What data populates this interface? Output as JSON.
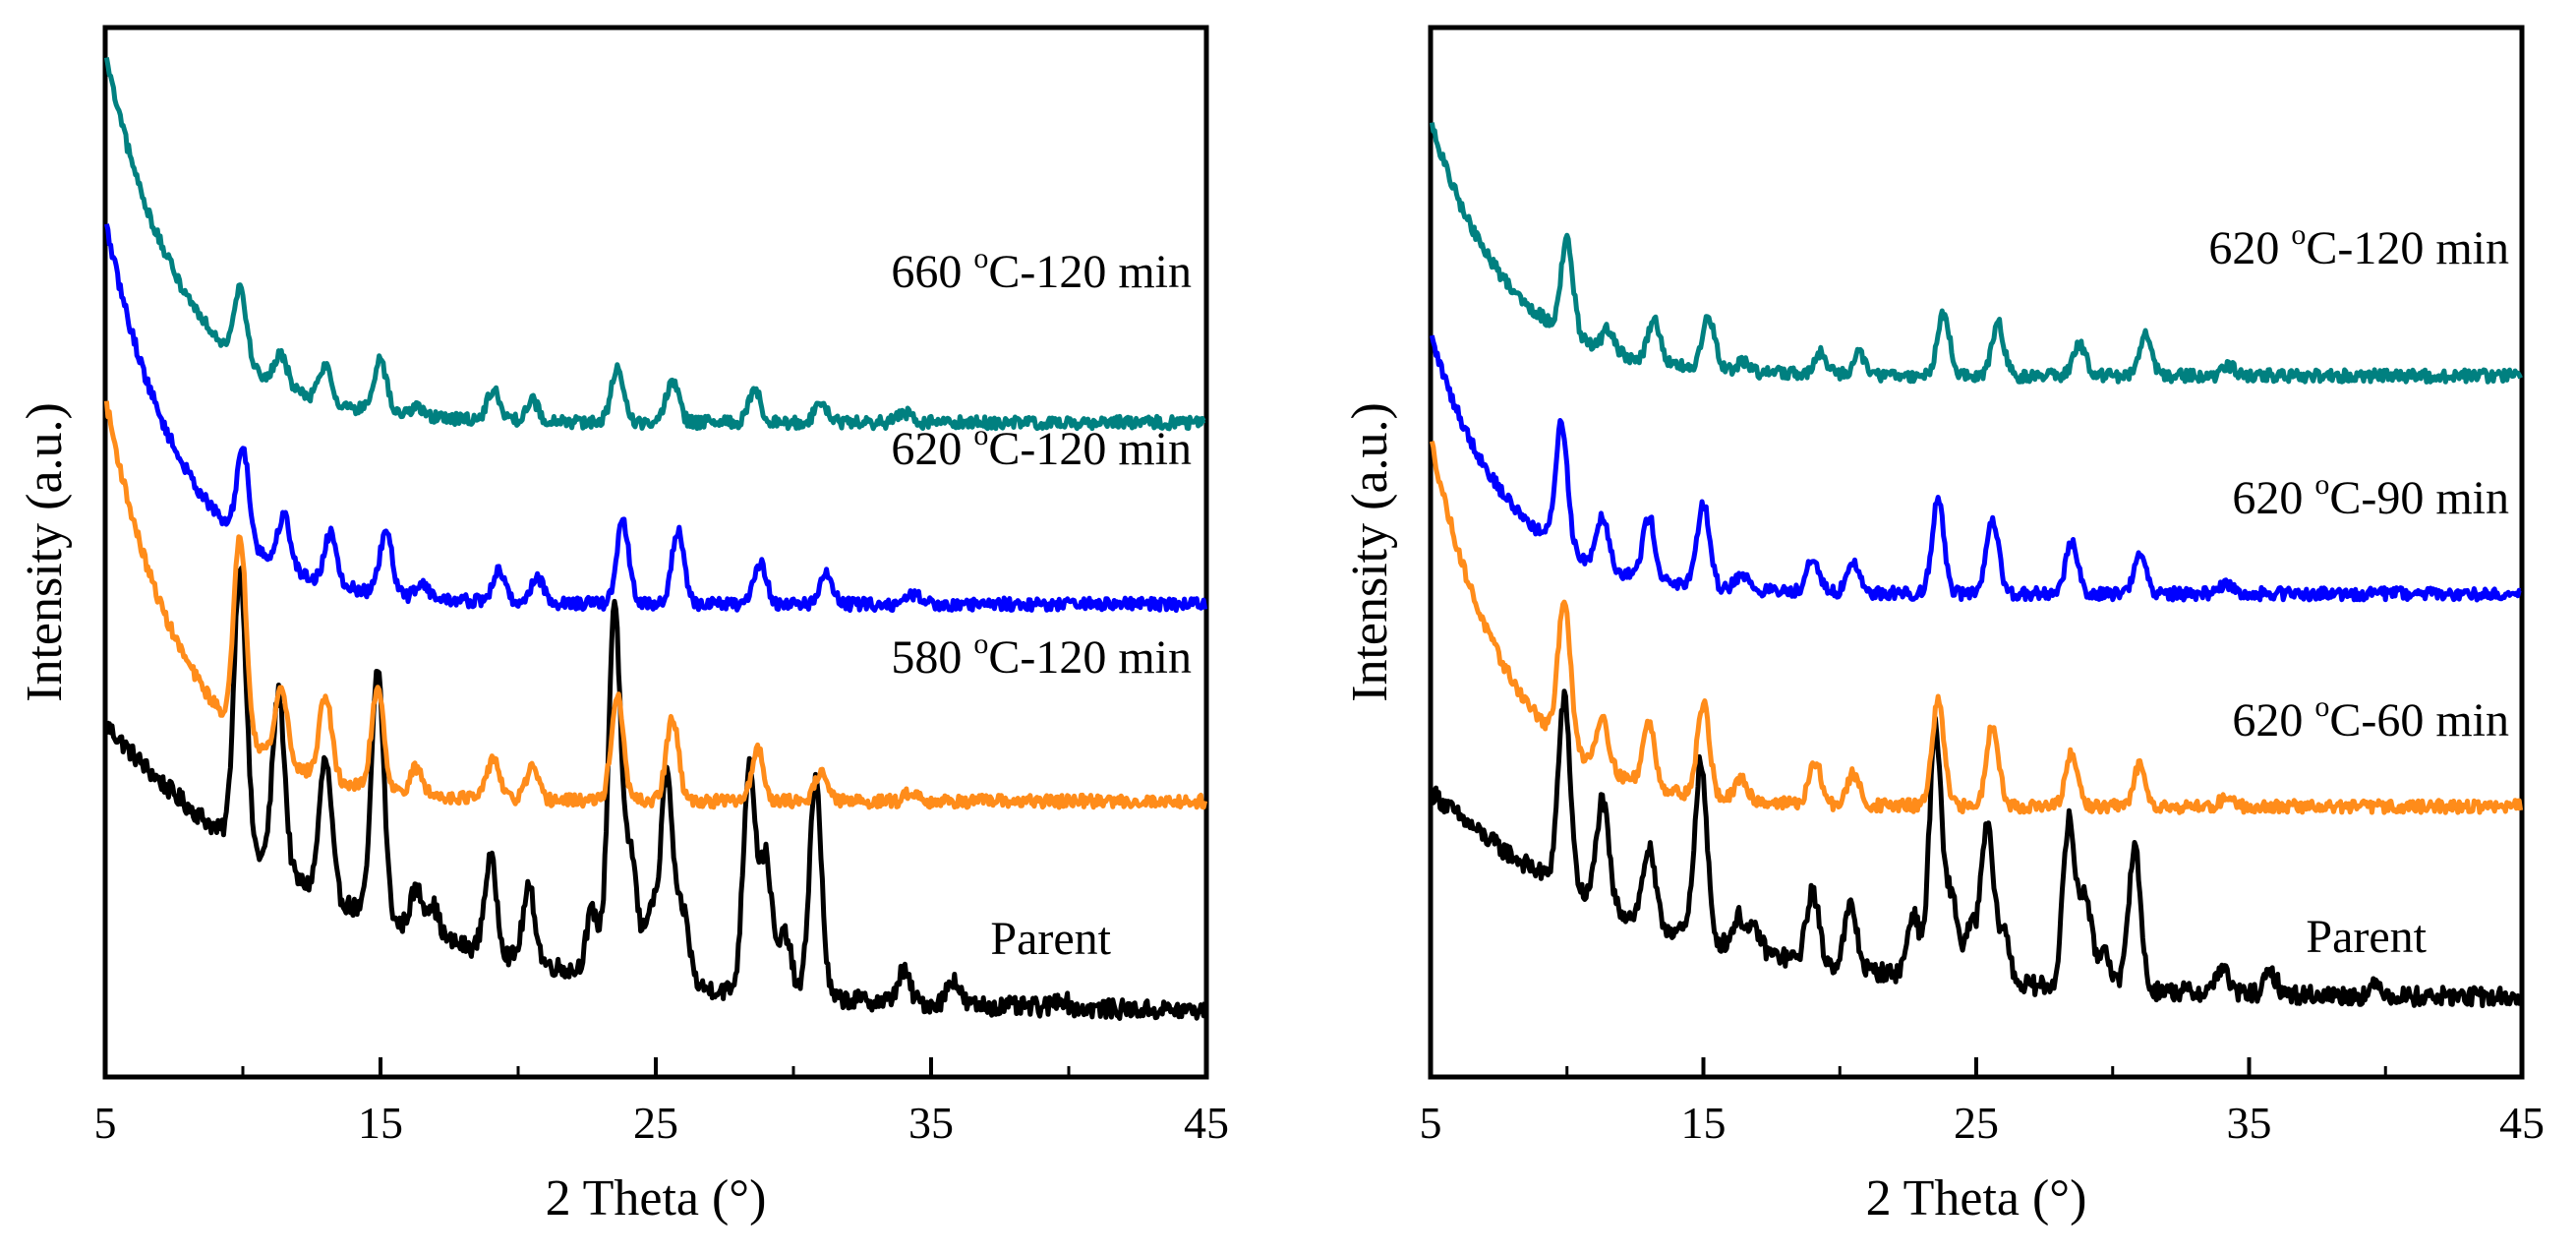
{
  "chart_data": [
    {
      "type": "line",
      "panel": "left",
      "xlabel": "2 Theta (°)",
      "ylabel": "Intensity (a.u.)",
      "xlim": [
        5,
        45
      ],
      "ylim": [
        0,
        100
      ],
      "xticks": [
        "5",
        "15",
        "25",
        "35",
        "45"
      ],
      "grid": false,
      "series": [
        {
          "name": "Parent",
          "label": "Parent",
          "color": "#000000",
          "start": 33.5,
          "end": 5.5,
          "decay": 9.0,
          "noise": 0.9,
          "peaks": [
            [
              9.9,
              27
            ],
            [
              11.3,
              17
            ],
            [
              13.0,
              13
            ],
            [
              14.9,
              24
            ],
            [
              16.3,
              4
            ],
            [
              16.9,
              3
            ],
            [
              19.0,
              9
            ],
            [
              20.4,
              7
            ],
            [
              22.7,
              6
            ],
            [
              23.5,
              36
            ],
            [
              24.1,
              12
            ],
            [
              24.8,
              7
            ],
            [
              25.4,
              20
            ],
            [
              26.0,
              7
            ],
            [
              28.4,
              22
            ],
            [
              29.0,
              13
            ],
            [
              29.7,
              6
            ],
            [
              30.8,
              21
            ],
            [
              34.0,
              3
            ],
            [
              35.8,
              2.5
            ],
            [
              39.7,
              1
            ]
          ]
        },
        {
          "name": "580 °C-120 min",
          "label_prefix": "580 ",
          "label_sup": "o",
          "label_suffix": "C-120 min",
          "color": "#FF8C1A",
          "start": 65,
          "end": 26,
          "decay": 2.8,
          "noise": 0.6,
          "peaks": [
            [
              9.9,
              19
            ],
            [
              11.4,
              7
            ],
            [
              13.0,
              8
            ],
            [
              14.9,
              10
            ],
            [
              16.3,
              2.5
            ],
            [
              19.1,
              4
            ],
            [
              20.5,
              3
            ],
            [
              23.6,
              10
            ],
            [
              25.6,
              8
            ],
            [
              28.7,
              5
            ],
            [
              31.0,
              3
            ],
            [
              34.3,
              1
            ]
          ]
        },
        {
          "name": "620 °C-120 min",
          "label_prefix": "620 ",
          "label_sup": "o",
          "label_suffix": "C-120 min",
          "color": "#0000FF",
          "start": 82,
          "end": 45,
          "decay": 2.8,
          "noise": 0.6,
          "peaks": [
            [
              10.0,
              9
            ],
            [
              11.5,
              5
            ],
            [
              13.2,
              5
            ],
            [
              15.2,
              6
            ],
            [
              16.5,
              1.5
            ],
            [
              19.3,
              3
            ],
            [
              20.7,
              2.5
            ],
            [
              23.8,
              8
            ],
            [
              25.8,
              7
            ],
            [
              28.8,
              4
            ],
            [
              31.2,
              3
            ],
            [
              34.4,
              1
            ]
          ]
        },
        {
          "name": "660 °C-120 min",
          "label_prefix": "660 ",
          "label_sup": "o",
          "label_suffix": "C-120 min",
          "color": "#008080",
          "start": 98,
          "end": 62.5,
          "decay": 2.8,
          "noise": 0.6,
          "peaks": [
            [
              9.9,
              7
            ],
            [
              11.4,
              3
            ],
            [
              13.0,
              3.5
            ],
            [
              15.0,
              5
            ],
            [
              16.3,
              1
            ],
            [
              19.1,
              3
            ],
            [
              20.5,
              2
            ],
            [
              23.6,
              5
            ],
            [
              25.6,
              4
            ],
            [
              28.6,
              3
            ],
            [
              31.0,
              2
            ],
            [
              34.0,
              1
            ]
          ]
        }
      ]
    },
    {
      "type": "line",
      "panel": "right",
      "xlabel": "2 Theta (°)",
      "ylabel": "Intensity (a.u.)",
      "xlim": [
        5,
        45
      ],
      "ylim": [
        0,
        100
      ],
      "xticks": [
        "5",
        "15",
        "25",
        "35",
        "45"
      ],
      "grid": false,
      "series": [
        {
          "name": "Parent",
          "label": "Parent",
          "color": "#000000",
          "start": 27,
          "end": 7,
          "decay": 8.0,
          "noise": 0.9,
          "peaks": [
            [
              9.9,
              18
            ],
            [
              11.3,
              10
            ],
            [
              13.0,
              7
            ],
            [
              14.9,
              17
            ],
            [
              16.3,
              3
            ],
            [
              16.9,
              2
            ],
            [
              19.0,
              7
            ],
            [
              20.4,
              6
            ],
            [
              22.7,
              6
            ],
            [
              23.5,
              24
            ],
            [
              24.1,
              8
            ],
            [
              24.8,
              5
            ],
            [
              25.4,
              15
            ],
            [
              26.0,
              5
            ],
            [
              28.4,
              16
            ],
            [
              29.0,
              9
            ],
            [
              29.7,
              4
            ],
            [
              30.8,
              14
            ],
            [
              34.0,
              2.5
            ],
            [
              35.8,
              2
            ],
            [
              39.7,
              1
            ]
          ]
        },
        {
          "name": "620 °C-60 min",
          "label_prefix": "620 ",
          "label_sup": "o",
          "label_suffix": "C-60 min",
          "color": "#FF8C1A",
          "start": 61,
          "end": 25.5,
          "decay": 2.8,
          "noise": 0.6,
          "peaks": [
            [
              9.9,
              14
            ],
            [
              11.3,
              5
            ],
            [
              13.0,
              6
            ],
            [
              15.0,
              9
            ],
            [
              16.4,
              2
            ],
            [
              19.1,
              4
            ],
            [
              20.5,
              3
            ],
            [
              23.6,
              10
            ],
            [
              25.6,
              8
            ],
            [
              28.5,
              5
            ],
            [
              31.0,
              4
            ],
            [
              34.2,
              1
            ]
          ]
        },
        {
          "name": "620 °C-90 min",
          "label_prefix": "620 ",
          "label_sup": "o",
          "label_suffix": "C-90 min",
          "color": "#0000FF",
          "start": 71,
          "end": 46,
          "decay": 2.8,
          "noise": 0.6,
          "peaks": [
            [
              9.8,
              12
            ],
            [
              11.3,
              5
            ],
            [
              13.0,
              6
            ],
            [
              15.0,
              8
            ],
            [
              16.4,
              1.5
            ],
            [
              19.0,
              3.5
            ],
            [
              20.5,
              3
            ],
            [
              23.6,
              9
            ],
            [
              25.6,
              7
            ],
            [
              28.5,
              5
            ],
            [
              31.0,
              4
            ],
            [
              34.2,
              1
            ]
          ]
        },
        {
          "name": "620 °C-120 min",
          "label_prefix": "620 ",
          "label_sup": "o",
          "label_suffix": "C-120 min",
          "color": "#008080",
          "start": 91.5,
          "end": 67,
          "decay": 2.8,
          "noise": 0.6,
          "peaks": [
            [
              10.0,
              9
            ],
            [
              11.5,
              2
            ],
            [
              13.2,
              4
            ],
            [
              15.2,
              5
            ],
            [
              16.5,
              1
            ],
            [
              19.3,
              2
            ],
            [
              20.7,
              2
            ],
            [
              23.8,
              6
            ],
            [
              25.8,
              5
            ],
            [
              28.8,
              3
            ],
            [
              31.2,
              4
            ],
            [
              34.3,
              1
            ]
          ]
        }
      ]
    }
  ]
}
